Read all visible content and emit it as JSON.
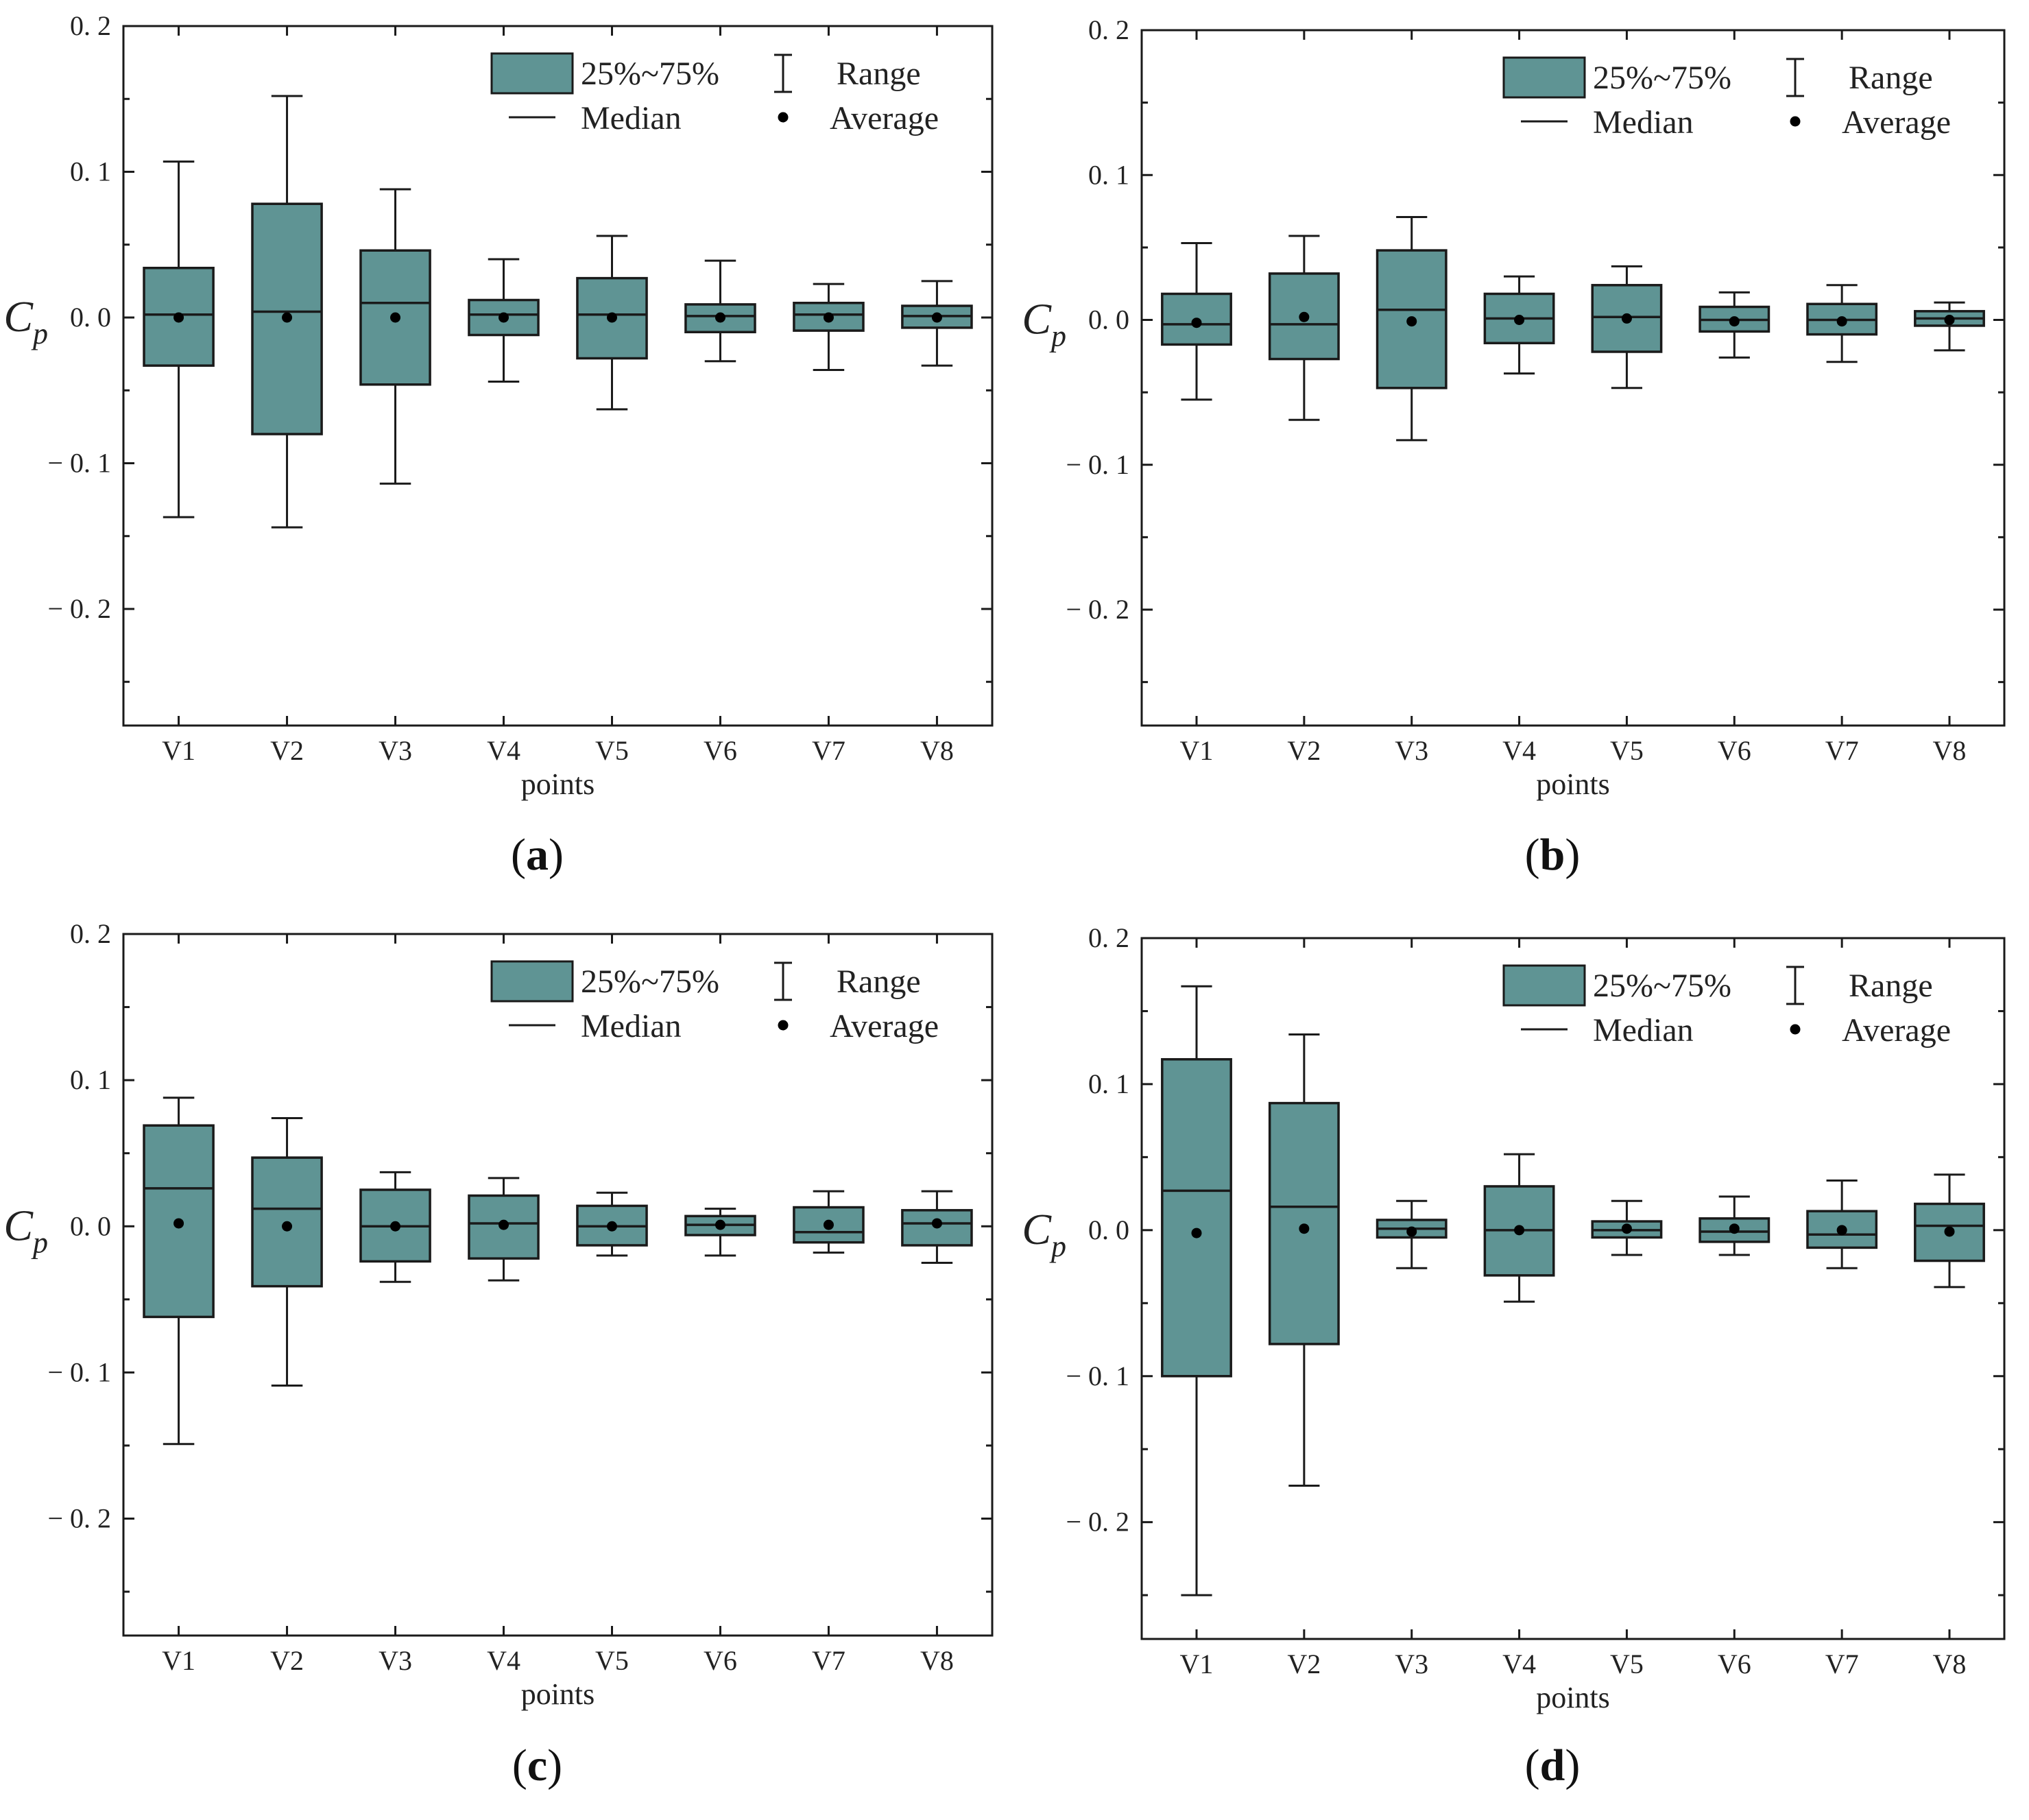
{
  "style": {
    "box_fill": "#5f9494",
    "stroke": "#1a1a1a",
    "background": "#ffffff"
  },
  "legend": {
    "iqr": "25%~75%",
    "range": "Range",
    "median": "Median",
    "average": "Average"
  },
  "chart_data": [
    {
      "type": "box",
      "panel_label": "a",
      "xlabel": "points",
      "ylabel": "C",
      "ylabel_sub": "p",
      "ylim": [
        -0.28,
        0.2
      ],
      "yticks": [
        0.2,
        0.1,
        0.0,
        -0.1,
        -0.2
      ],
      "ytick_labels": [
        "0. 2",
        "0. 1",
        "0. 0",
        "− 0. 1",
        "− 0. 2"
      ],
      "categories": [
        "V1",
        "V2",
        "V3",
        "V4",
        "V5",
        "V6",
        "V7",
        "V8"
      ],
      "min": [
        -0.137,
        -0.144,
        -0.114,
        -0.044,
        -0.063,
        -0.03,
        -0.036,
        -0.033
      ],
      "q1": [
        -0.033,
        -0.08,
        -0.046,
        -0.012,
        -0.028,
        -0.01,
        -0.009,
        -0.007
      ],
      "median": [
        0.002,
        0.004,
        0.01,
        0.002,
        0.002,
        0.001,
        0.002,
        0.001
      ],
      "q3": [
        0.034,
        0.078,
        0.046,
        0.012,
        0.027,
        0.009,
        0.01,
        0.008
      ],
      "max": [
        0.107,
        0.152,
        0.088,
        0.04,
        0.056,
        0.039,
        0.023,
        0.025
      ],
      "mean": [
        0.0,
        0.0,
        0.0,
        0.0,
        0.0,
        0.0,
        0.0,
        0.0
      ]
    },
    {
      "type": "box",
      "panel_label": "b",
      "xlabel": "points",
      "ylabel": "C",
      "ylabel_sub": "p",
      "ylim": [
        -0.28,
        0.2
      ],
      "yticks": [
        0.2,
        0.1,
        0.0,
        -0.1,
        -0.2
      ],
      "ytick_labels": [
        "0. 2",
        "0. 1",
        "0. 0",
        "− 0. 1",
        "− 0. 2"
      ],
      "categories": [
        "V1",
        "V2",
        "V3",
        "V4",
        "V5",
        "V6",
        "V7",
        "V8"
      ],
      "min": [
        -0.055,
        -0.069,
        -0.083,
        -0.037,
        -0.047,
        -0.026,
        -0.029,
        -0.021
      ],
      "q1": [
        -0.017,
        -0.027,
        -0.047,
        -0.016,
        -0.022,
        -0.008,
        -0.01,
        -0.004
      ],
      "median": [
        -0.003,
        -0.003,
        0.007,
        0.001,
        0.002,
        0.0,
        0.0,
        0.001
      ],
      "q3": [
        0.018,
        0.032,
        0.048,
        0.018,
        0.024,
        0.009,
        0.011,
        0.006
      ],
      "max": [
        0.053,
        0.058,
        0.071,
        0.03,
        0.037,
        0.019,
        0.024,
        0.012
      ],
      "mean": [
        -0.002,
        0.002,
        -0.001,
        0.0,
        0.001,
        -0.001,
        -0.001,
        0.0
      ]
    },
    {
      "type": "box",
      "panel_label": "c",
      "xlabel": "points",
      "ylabel": "C",
      "ylabel_sub": "p",
      "ylim": [
        -0.28,
        0.2
      ],
      "yticks": [
        0.2,
        0.1,
        0.0,
        -0.1,
        -0.2
      ],
      "ytick_labels": [
        "0. 2",
        "0. 1",
        "0. 0",
        "− 0. 1",
        "− 0. 2"
      ],
      "categories": [
        "V1",
        "V2",
        "V3",
        "V4",
        "V5",
        "V6",
        "V7",
        "V8"
      ],
      "min": [
        -0.149,
        -0.109,
        -0.038,
        -0.037,
        -0.02,
        -0.02,
        -0.018,
        -0.025
      ],
      "q1": [
        -0.062,
        -0.041,
        -0.024,
        -0.022,
        -0.013,
        -0.006,
        -0.011,
        -0.013
      ],
      "median": [
        0.026,
        0.012,
        0.0,
        0.002,
        0.0,
        0.001,
        -0.004,
        0.002
      ],
      "q3": [
        0.069,
        0.047,
        0.025,
        0.021,
        0.014,
        0.007,
        0.013,
        0.011
      ],
      "max": [
        0.088,
        0.074,
        0.037,
        0.033,
        0.023,
        0.012,
        0.024,
        0.024
      ],
      "mean": [
        0.002,
        0.0,
        0.0,
        0.001,
        0.0,
        0.001,
        0.001,
        0.002
      ]
    },
    {
      "type": "box",
      "panel_label": "d",
      "xlabel": "points",
      "ylabel": "C",
      "ylabel_sub": "p",
      "ylim": [
        -0.28,
        0.2
      ],
      "yticks": [
        0.2,
        0.1,
        0.0,
        -0.1,
        -0.2
      ],
      "ytick_labels": [
        "0. 2",
        "0. 1",
        "0. 0",
        "− 0. 1",
        "− 0. 2"
      ],
      "categories": [
        "V1",
        "V2",
        "V3",
        "V4",
        "V5",
        "V6",
        "V7",
        "V8"
      ],
      "min": [
        -0.25,
        -0.175,
        -0.026,
        -0.049,
        -0.017,
        -0.017,
        -0.026,
        -0.039
      ],
      "q1": [
        -0.1,
        -0.078,
        -0.005,
        -0.031,
        -0.005,
        -0.008,
        -0.012,
        -0.021
      ],
      "median": [
        0.027,
        0.016,
        0.001,
        0.0,
        0.0,
        -0.001,
        -0.003,
        0.003
      ],
      "q3": [
        0.117,
        0.087,
        0.007,
        0.03,
        0.006,
        0.008,
        0.013,
        0.018
      ],
      "max": [
        0.167,
        0.134,
        0.02,
        0.052,
        0.02,
        0.023,
        0.034,
        0.038
      ],
      "mean": [
        -0.002,
        0.001,
        -0.001,
        0.0,
        0.001,
        0.001,
        0.0,
        -0.001
      ]
    }
  ]
}
